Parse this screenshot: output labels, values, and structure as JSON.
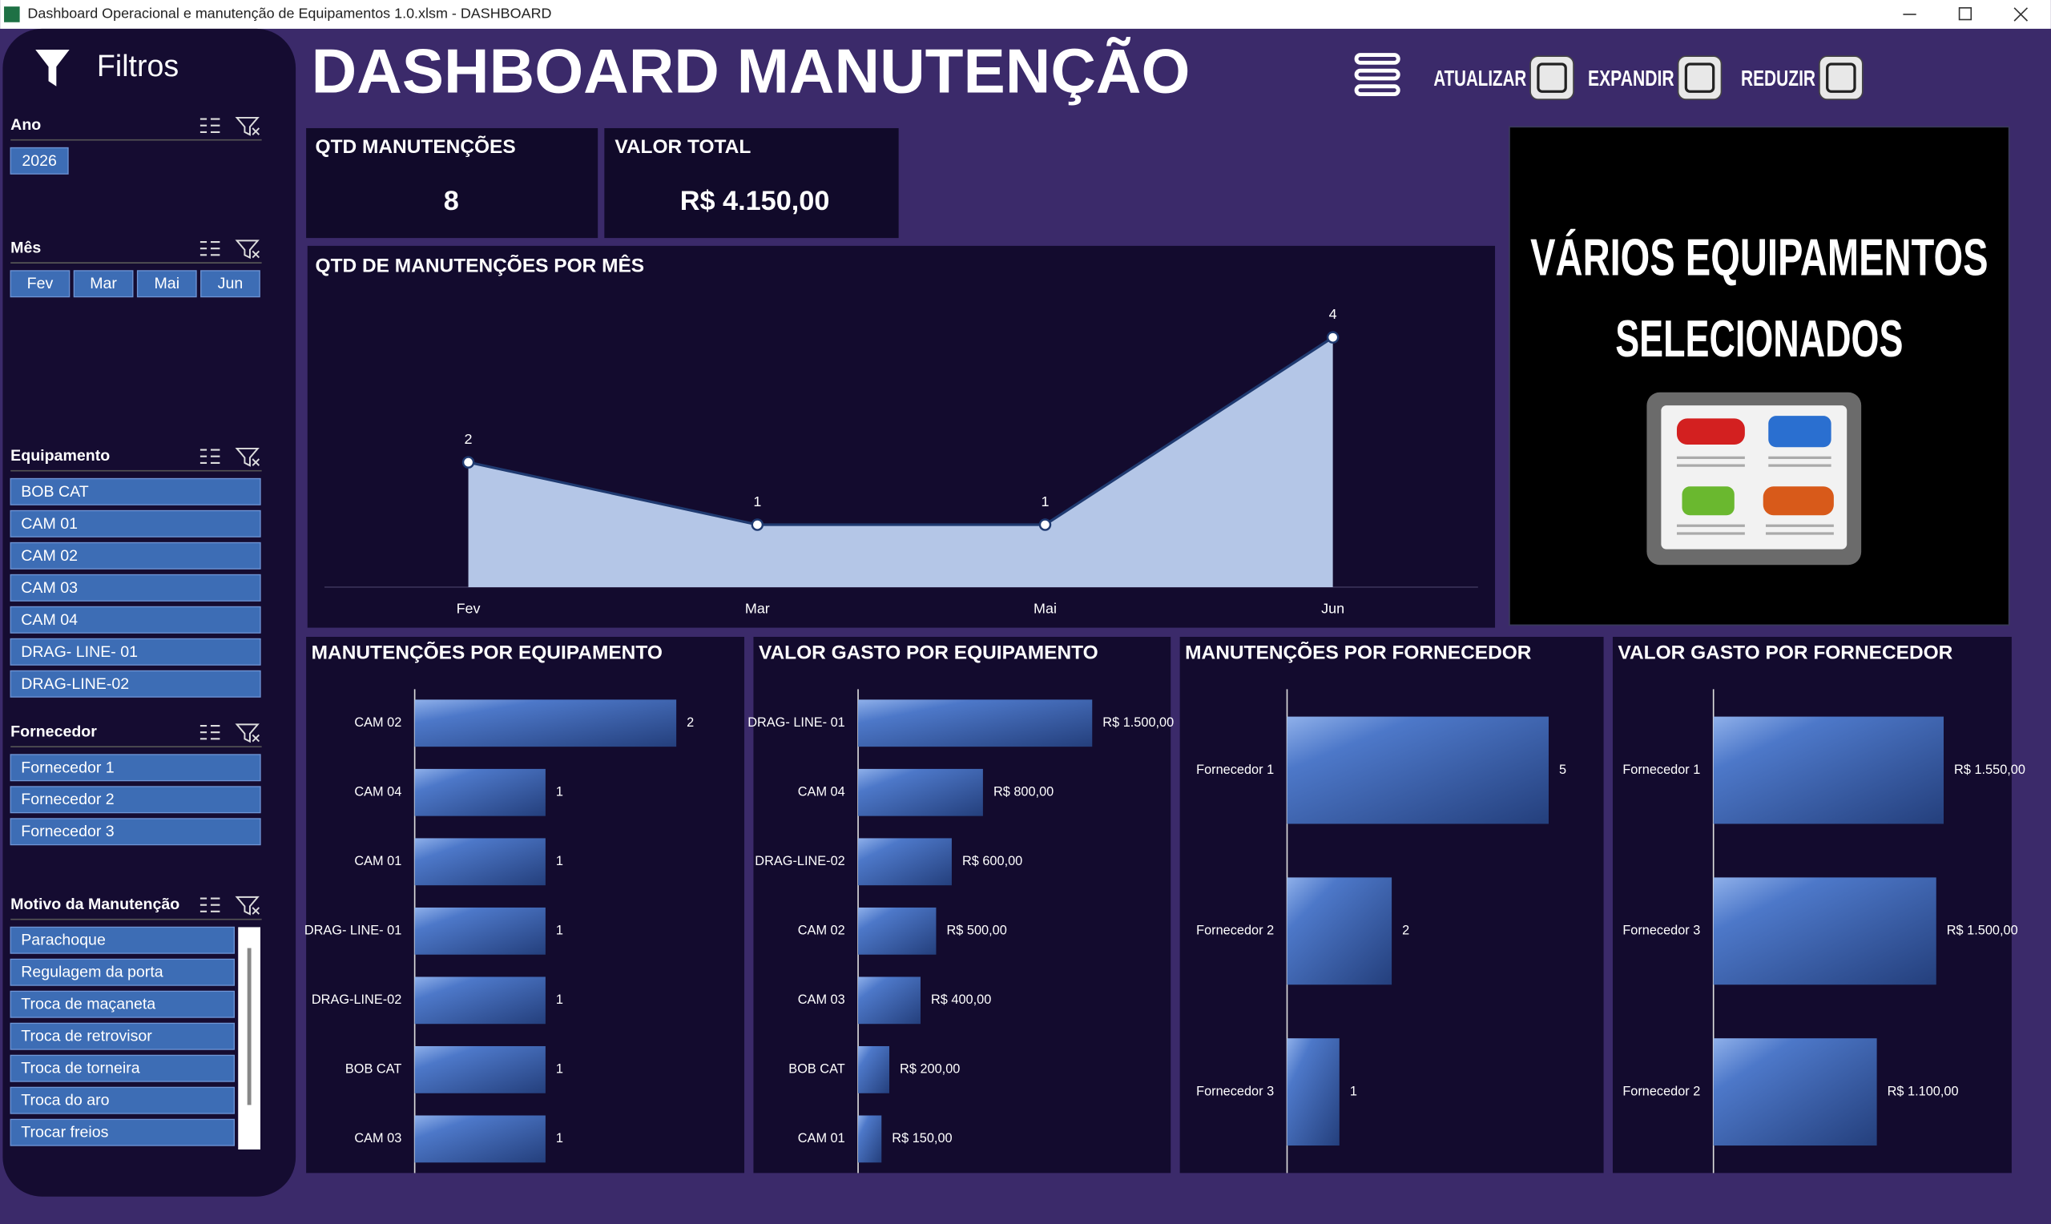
{
  "window": {
    "title": "Dashboard Operacional e manutenção de Equipamentos 1.0.xlsm - DASHBOARD"
  },
  "sidebar": {
    "title": "Filtros",
    "sections": [
      {
        "title": "Ano",
        "items": [
          "2026"
        ]
      },
      {
        "title": "Mês",
        "items": [
          "Fev",
          "Mar",
          "Mai",
          "Jun"
        ]
      },
      {
        "title": "Equipamento",
        "items": [
          "BOB CAT",
          "CAM 01",
          "CAM 02",
          "CAM 03",
          "CAM 04",
          "DRAG- LINE- 01",
          "DRAG-LINE-02"
        ]
      },
      {
        "title": "Fornecedor",
        "items": [
          "Fornecedor 1",
          "Fornecedor 2",
          "Fornecedor 3"
        ]
      },
      {
        "title": "Motivo da Manutenção",
        "items": [
          "Parachoque",
          "Regulagem da porta",
          "Troca de maçaneta",
          "Troca de retrovisor",
          "Troca de torneira",
          "Troca do aro",
          "Trocar freios"
        ]
      }
    ]
  },
  "header": {
    "title": "DASHBOARD MANUTENÇÃO",
    "buttons": [
      "ATUALIZAR",
      "EXPANDIR",
      "REDUZIR"
    ]
  },
  "kpis": [
    {
      "label": "QTD MANUTENÇÕES",
      "value": "8"
    },
    {
      "label": "VALOR TOTAL",
      "value": "R$ 4.150,00"
    }
  ],
  "image_panel": {
    "lines": [
      "VÁRIOS EQUIPAMENTOS",
      "SELECIONADOS"
    ]
  },
  "chart_data": [
    {
      "type": "area",
      "title": "QTD DE MANUTENÇÕES POR MÊS",
      "categories": [
        "Fev",
        "Mar",
        "Mai",
        "Jun"
      ],
      "values": [
        2,
        1,
        1,
        4
      ],
      "color": "#b4c6e7"
    },
    {
      "type": "hbar",
      "title": "MANUTENÇÕES POR EQUIPAMENTO",
      "categories": [
        "CAM 02",
        "CAM 04",
        "CAM 01",
        "DRAG- LINE- 01",
        "DRAG-LINE-02",
        "BOB CAT",
        "CAM 03"
      ],
      "values": [
        2,
        1,
        1,
        1,
        1,
        1,
        1
      ],
      "color": "#4a74c4"
    },
    {
      "type": "hbar",
      "title": "VALOR GASTO POR EQUIPAMENTO",
      "categories": [
        "DRAG- LINE- 01",
        "CAM 04",
        "DRAG-LINE-02",
        "CAM 02",
        "CAM 03",
        "BOB CAT",
        "CAM 01"
      ],
      "values": [
        1500,
        800,
        600,
        500,
        400,
        200,
        150
      ],
      "value_labels": [
        "R$ 1.500,00",
        "R$ 800,00",
        "R$ 600,00",
        "R$ 500,00",
        "R$ 400,00",
        "R$ 200,00",
        "R$ 150,00"
      ],
      "color": "#4a74c4"
    },
    {
      "type": "hbar",
      "title": "MANUTENÇÕES POR FORNECEDOR",
      "categories": [
        "Fornecedor 1",
        "Fornecedor 2",
        "Fornecedor 3"
      ],
      "values": [
        5,
        2,
        1
      ],
      "color": "#4a74c4"
    },
    {
      "type": "hbar",
      "title": "VALOR GASTO POR FORNECEDOR",
      "categories": [
        "Fornecedor 1",
        "Fornecedor 3",
        "Fornecedor 2"
      ],
      "values": [
        1550,
        1500,
        1100
      ],
      "value_labels": [
        "R$ 1.550,00",
        "R$ 1.500,00",
        "R$ 1.100,00"
      ],
      "color": "#4a74c4"
    }
  ]
}
